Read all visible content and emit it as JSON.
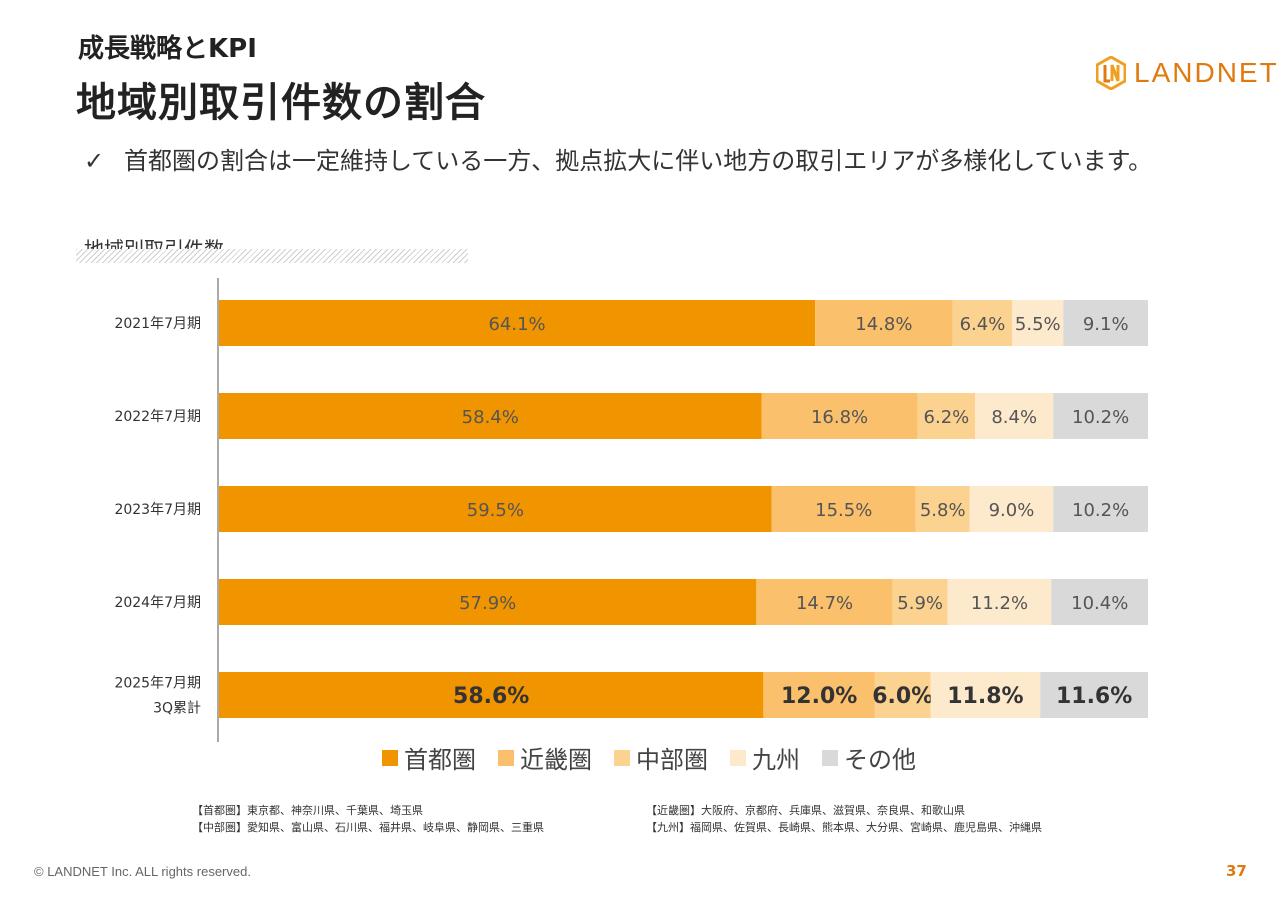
{
  "header": {
    "subtitle": "成長戦略とKPI",
    "title": "地域別取引件数の割合",
    "logo_text": "LANDNET"
  },
  "bullet": {
    "check": "✓",
    "text": "首都圏の割合は一定維持している一方、拠点拡大に伴い地方の取引エリアが多様化しています。"
  },
  "chart_label": "地域別取引件数",
  "chart_data": {
    "type": "bar",
    "orientation": "horizontal",
    "stacked": "100%",
    "categories": [
      "2021年7月期",
      "2022年7月期",
      "2023年7月期",
      "2024年7月期",
      "2025年7月期\n3Q累計"
    ],
    "series": [
      {
        "name": "首都圏",
        "color": "#f09400",
        "values": [
          64.1,
          58.4,
          59.5,
          57.9,
          58.6
        ]
      },
      {
        "name": "近畿圏",
        "color": "#fac06b",
        "values": [
          14.8,
          16.8,
          15.5,
          14.7,
          12.0
        ]
      },
      {
        "name": "中部圏",
        "color": "#fbd290",
        "values": [
          6.4,
          6.2,
          5.8,
          5.9,
          6.0
        ]
      },
      {
        "name": "九州",
        "color": "#fde9cc",
        "values": [
          5.5,
          8.4,
          9.0,
          11.2,
          11.8
        ]
      },
      {
        "name": "その他",
        "color": "#d9d9d9",
        "values": [
          9.1,
          10.2,
          10.2,
          10.4,
          11.6
        ]
      }
    ],
    "value_format": "{v}%",
    "highlight_last_row": true,
    "legend_position": "bottom",
    "grid": false
  },
  "notes": {
    "left": [
      "【首都圏】東京都、神奈川県、千葉県、埼玉県",
      "【中部圏】愛知県、富山県、石川県、福井県、岐阜県、静岡県、三重県"
    ],
    "right": [
      "【近畿圏】大阪府、京都府、兵庫県、滋賀県、奈良県、和歌山県",
      "【九州】福岡県、佐賀県、長崎県、熊本県、大分県、宮崎県、鹿児島県、沖縄県"
    ]
  },
  "footer": {
    "copyright": "© LANDNET Inc. ALL rights reserved.",
    "page": "37"
  },
  "colors": {
    "accent": "#e07a10"
  }
}
